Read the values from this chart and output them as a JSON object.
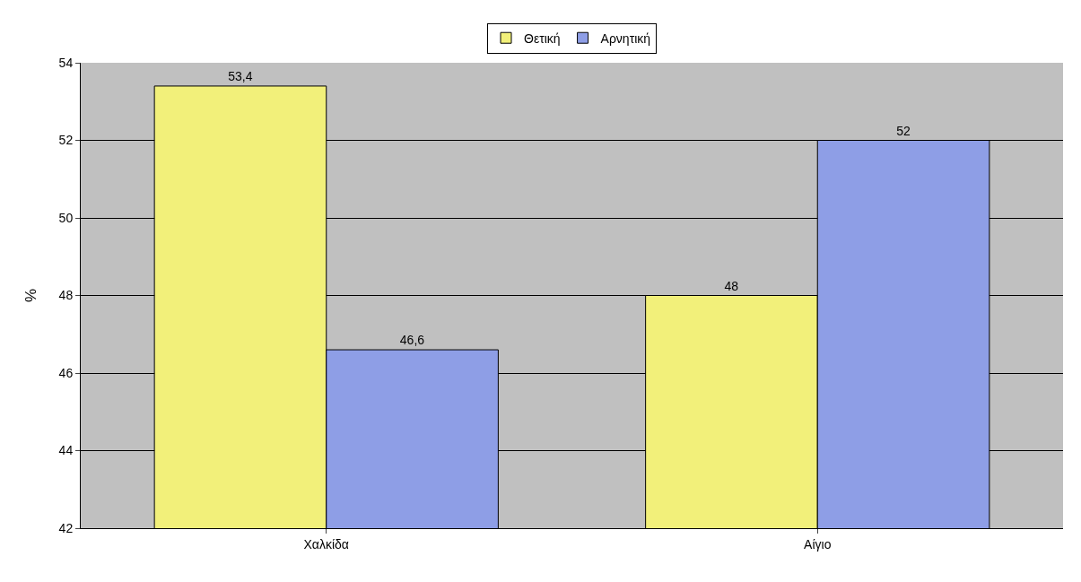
{
  "chart_data": {
    "type": "bar",
    "ylabel": "%",
    "categories": [
      "Χαλκίδα",
      "Αίγιο"
    ],
    "series": [
      {
        "name": "Θετική",
        "color": "#f2f07a",
        "values": [
          53.4,
          48
        ]
      },
      {
        "name": "Αρνητική",
        "color": "#8e9ee6",
        "values": [
          46.6,
          52
        ]
      }
    ],
    "value_labels": [
      [
        "53,4",
        "48"
      ],
      [
        "46,6",
        "52"
      ]
    ],
    "ylim": [
      42,
      54
    ],
    "yticks": [
      42,
      44,
      46,
      48,
      50,
      52,
      54
    ],
    "grid": "y",
    "legend": "top"
  }
}
